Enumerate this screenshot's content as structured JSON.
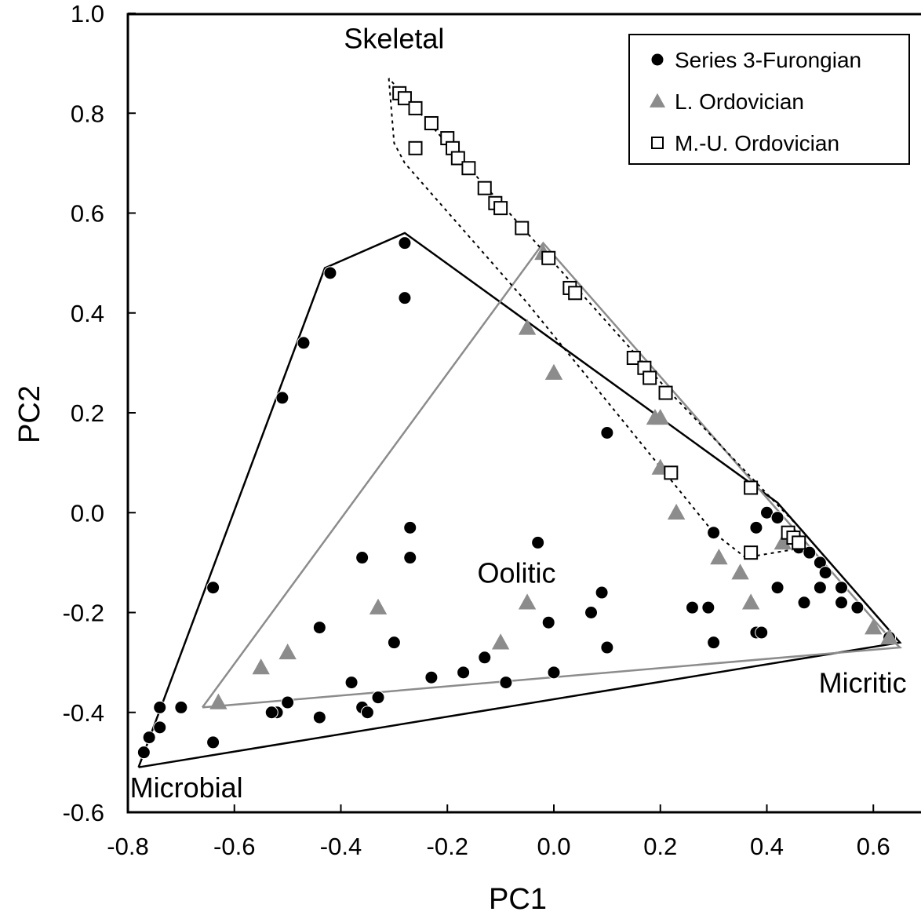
{
  "chart_data": {
    "type": "scatter",
    "title": "",
    "xlabel": "PC1",
    "ylabel": "PC2",
    "xlim": [
      -0.8,
      0.65
    ],
    "ylim": [
      -0.6,
      1.0
    ],
    "xticks": [
      -0.8,
      -0.6,
      -0.4,
      -0.2,
      0.0,
      0.2,
      0.4,
      0.6
    ],
    "xtick_labels": [
      "-0.8",
      "-0.6",
      "-0.4",
      "-0.2",
      "0.0",
      "0.2",
      "0.4",
      "0.6"
    ],
    "yticks": [
      1.0,
      0.8,
      0.6,
      0.4,
      0.2,
      0.0,
      -0.2,
      -0.4,
      -0.6
    ],
    "ytick_labels": [
      "1.0",
      "0.8",
      "0.6",
      "0.4",
      "0.2",
      "0.0",
      "-0.2",
      "-0.4",
      "-0.6"
    ],
    "grid": false,
    "legend_position": "top-right",
    "annotations": [
      {
        "text": "Skeletal",
        "x": -0.3,
        "y": 0.93
      },
      {
        "text": "Oolitic",
        "x": -0.07,
        "y": -0.14
      },
      {
        "text": "Micritic",
        "x": 0.58,
        "y": -0.36
      },
      {
        "text": "Microbial",
        "x": -0.69,
        "y": -0.57
      }
    ],
    "series": [
      {
        "name": "Series 3-Furongian",
        "marker": "circle",
        "color": "#000000",
        "points": [
          [
            -0.28,
            0.54
          ],
          [
            -0.28,
            0.43
          ],
          [
            -0.42,
            0.48
          ],
          [
            -0.47,
            0.34
          ],
          [
            -0.51,
            0.23
          ],
          [
            -0.64,
            -0.15
          ],
          [
            -0.64,
            -0.46
          ],
          [
            -0.74,
            -0.39
          ],
          [
            -0.74,
            -0.43
          ],
          [
            -0.76,
            -0.45
          ],
          [
            -0.77,
            -0.48
          ],
          [
            -0.7,
            -0.39
          ],
          [
            -0.36,
            -0.09
          ],
          [
            -0.27,
            -0.03
          ],
          [
            -0.27,
            -0.09
          ],
          [
            -0.03,
            -0.06
          ],
          [
            -0.44,
            -0.23
          ],
          [
            -0.5,
            -0.38
          ],
          [
            -0.52,
            -0.4
          ],
          [
            -0.53,
            -0.4
          ],
          [
            -0.44,
            -0.41
          ],
          [
            -0.38,
            -0.34
          ],
          [
            -0.36,
            -0.39
          ],
          [
            -0.35,
            -0.4
          ],
          [
            -0.33,
            -0.37
          ],
          [
            -0.3,
            -0.26
          ],
          [
            -0.23,
            -0.33
          ],
          [
            -0.17,
            -0.32
          ],
          [
            -0.13,
            -0.29
          ],
          [
            -0.09,
            -0.34
          ],
          [
            0.0,
            -0.32
          ],
          [
            -0.01,
            -0.22
          ],
          [
            0.07,
            -0.2
          ],
          [
            0.1,
            -0.27
          ],
          [
            0.09,
            -0.16
          ],
          [
            0.1,
            0.16
          ],
          [
            0.26,
            -0.19
          ],
          [
            0.29,
            -0.19
          ],
          [
            0.3,
            -0.26
          ],
          [
            0.38,
            -0.24
          ],
          [
            0.39,
            -0.24
          ],
          [
            0.4,
            0.0
          ],
          [
            0.42,
            -0.01
          ],
          [
            0.38,
            -0.03
          ],
          [
            0.3,
            -0.04
          ],
          [
            0.44,
            -0.04
          ],
          [
            0.46,
            -0.07
          ],
          [
            0.48,
            -0.08
          ],
          [
            0.5,
            -0.1
          ],
          [
            0.51,
            -0.12
          ],
          [
            0.42,
            -0.15
          ],
          [
            0.47,
            -0.18
          ],
          [
            0.5,
            -0.15
          ],
          [
            0.54,
            -0.15
          ],
          [
            0.54,
            -0.18
          ],
          [
            0.57,
            -0.19
          ],
          [
            0.63,
            -0.25
          ]
        ]
      },
      {
        "name": "L. Ordovician",
        "marker": "triangle",
        "color": "#8c8c8c",
        "points": [
          [
            -0.63,
            -0.38
          ],
          [
            -0.55,
            -0.31
          ],
          [
            -0.5,
            -0.28
          ],
          [
            -0.33,
            -0.19
          ],
          [
            -0.1,
            -0.26
          ],
          [
            -0.05,
            -0.18
          ],
          [
            -0.05,
            0.37
          ],
          [
            0.0,
            0.28
          ],
          [
            -0.02,
            0.52
          ],
          [
            0.19,
            0.19
          ],
          [
            0.2,
            0.19
          ],
          [
            0.2,
            0.09
          ],
          [
            0.23,
            0.0
          ],
          [
            0.31,
            -0.09
          ],
          [
            0.35,
            -0.12
          ],
          [
            0.37,
            -0.18
          ],
          [
            0.43,
            -0.06
          ],
          [
            0.6,
            -0.23
          ],
          [
            0.63,
            -0.25
          ]
        ]
      },
      {
        "name": "M.-U. Ordovician",
        "marker": "square",
        "color": "#ffffff",
        "points": [
          [
            -0.29,
            0.84
          ],
          [
            -0.28,
            0.83
          ],
          [
            -0.26,
            0.81
          ],
          [
            -0.23,
            0.78
          ],
          [
            -0.26,
            0.73
          ],
          [
            -0.2,
            0.75
          ],
          [
            -0.19,
            0.73
          ],
          [
            -0.18,
            0.71
          ],
          [
            -0.16,
            0.69
          ],
          [
            -0.13,
            0.65
          ],
          [
            -0.11,
            0.62
          ],
          [
            -0.1,
            0.61
          ],
          [
            -0.06,
            0.57
          ],
          [
            -0.01,
            0.51
          ],
          [
            0.03,
            0.45
          ],
          [
            0.04,
            0.44
          ],
          [
            0.15,
            0.31
          ],
          [
            0.17,
            0.29
          ],
          [
            0.18,
            0.27
          ],
          [
            0.21,
            0.24
          ],
          [
            0.22,
            0.08
          ],
          [
            0.37,
            0.05
          ],
          [
            0.37,
            -0.08
          ],
          [
            0.44,
            -0.04
          ],
          [
            0.45,
            -0.05
          ],
          [
            0.46,
            -0.06
          ]
        ]
      }
    ],
    "hulls": [
      {
        "series": "Series 3-Furongian",
        "style": "solid",
        "color": "#000000",
        "points": [
          [
            -0.78,
            -0.51
          ],
          [
            -0.43,
            0.49
          ],
          [
            -0.28,
            0.56
          ],
          [
            0.42,
            0.02
          ],
          [
            0.65,
            -0.26
          ],
          [
            -0.78,
            -0.51
          ]
        ]
      },
      {
        "series": "L. Ordovician",
        "style": "solid",
        "color": "#8c8c8c",
        "points": [
          [
            -0.66,
            -0.39
          ],
          [
            -0.02,
            0.54
          ],
          [
            0.63,
            -0.25
          ],
          [
            0.65,
            -0.27
          ],
          [
            -0.66,
            -0.39
          ]
        ]
      },
      {
        "series": "M.-U. Ordovician",
        "style": "dotted",
        "color": "#000000",
        "points": [
          [
            -0.31,
            0.87
          ],
          [
            -0.3,
            0.74
          ],
          [
            -0.28,
            0.7
          ],
          [
            -0.05,
            0.42
          ],
          [
            0.3,
            -0.04
          ],
          [
            0.36,
            -0.09
          ],
          [
            0.47,
            -0.07
          ],
          [
            0.47,
            -0.04
          ],
          [
            0.21,
            0.25
          ],
          [
            -0.31,
            0.87
          ]
        ]
      }
    ]
  }
}
